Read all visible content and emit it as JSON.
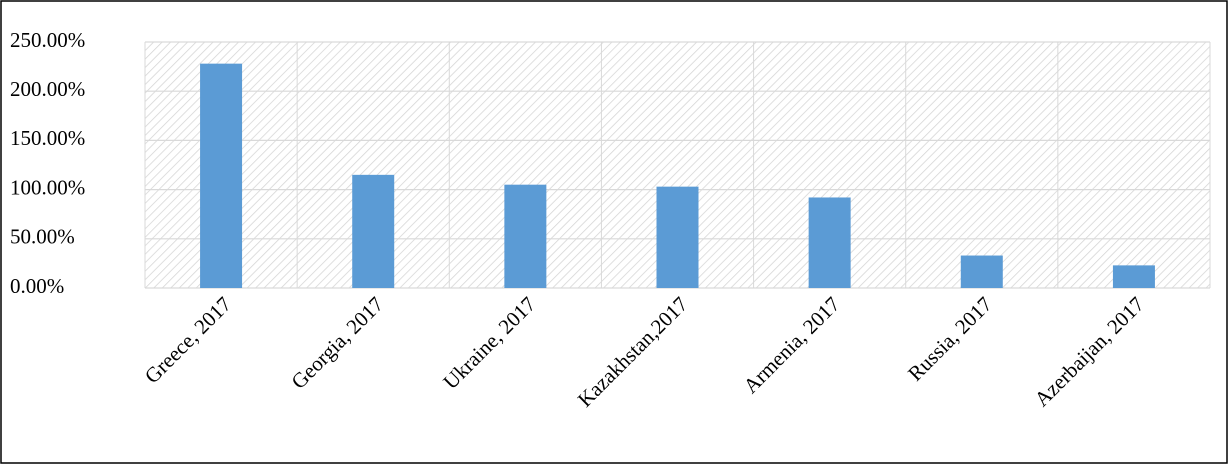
{
  "chart_data": {
    "type": "bar",
    "categories": [
      "Greece, 2017",
      "Georgia, 2017",
      "Ukraine, 2017",
      "Kazakhstan,2017",
      "Armenia, 2017",
      "Russia, 2017",
      "Azerbaijan, 2017"
    ],
    "values": [
      228,
      115,
      105,
      103,
      92,
      33,
      23
    ],
    "color": "#5b9bd5",
    "ylim": [
      0,
      250
    ],
    "yticks": [
      {
        "value": 0,
        "label": "0.00%"
      },
      {
        "value": 50,
        "label": "50.00%"
      },
      {
        "value": 100,
        "label": "100.00%"
      },
      {
        "value": 150,
        "label": "150.00%"
      },
      {
        "value": 200,
        "label": "200.00%"
      },
      {
        "value": 250,
        "label": "250.00%"
      }
    ],
    "grid": true
  }
}
